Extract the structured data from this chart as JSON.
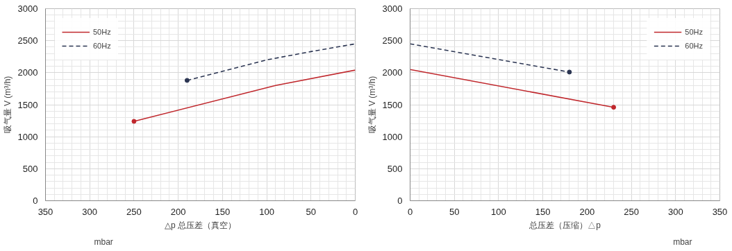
{
  "chart_data": [
    {
      "type": "line",
      "xlabel": "△p 总压差（真空）",
      "ylabel": "吸气量 V (m³/h)",
      "annotations": [
        "mbar"
      ],
      "xlim": [
        350,
        0
      ],
      "xticks": [
        350,
        300,
        250,
        200,
        150,
        100,
        50,
        0
      ],
      "ylim": [
        0,
        3000
      ],
      "yticks": [
        0,
        500,
        1000,
        1500,
        2000,
        2500,
        3000
      ],
      "grid": true,
      "legend": "top left",
      "series": [
        {
          "name": "50Hz",
          "color": "#c0282d",
          "line_style": "solid",
          "x": [
            250,
            90,
            0
          ],
          "values": [
            1240,
            1800,
            2040
          ]
        },
        {
          "name": "60Hz",
          "color": "#2b3552",
          "line_style": "dashed",
          "x": [
            190,
            100,
            50,
            0
          ],
          "values": [
            1880,
            2200,
            2330,
            2450
          ]
        },
        {
          "type": "scatter",
          "color": "#c0282d",
          "marker": "circle",
          "x": [
            250
          ],
          "values": [
            1240
          ]
        },
        {
          "type": "scatter",
          "color": "#2b3552",
          "marker": "circle",
          "x": [
            190
          ],
          "values": [
            1880
          ]
        }
      ]
    },
    {
      "type": "line",
      "xlabel": "总压差（压缩）△p",
      "ylabel": "吸气量 V (m³/h)",
      "annotations": [
        "mbar"
      ],
      "xlim": [
        0,
        350
      ],
      "xticks": [
        0,
        50,
        100,
        150,
        200,
        250,
        300,
        350
      ],
      "ylim": [
        0,
        3000
      ],
      "yticks": [
        0,
        500,
        1000,
        1500,
        2000,
        2500,
        3000
      ],
      "grid": true,
      "legend": "top right",
      "series": [
        {
          "name": "50Hz",
          "color": "#c0282d",
          "line_style": "solid",
          "x": [
            0,
            230
          ],
          "values": [
            2050,
            1460
          ]
        },
        {
          "name": "60Hz",
          "color": "#2b3552",
          "line_style": "dashed",
          "x": [
            0,
            180
          ],
          "values": [
            2450,
            2010
          ]
        },
        {
          "type": "scatter",
          "color": "#c0282d",
          "marker": "circle",
          "x": [
            230
          ],
          "values": [
            1460
          ]
        },
        {
          "type": "scatter",
          "color": "#2b3552",
          "marker": "circle",
          "x": [
            180
          ],
          "values": [
            2010
          ]
        }
      ]
    }
  ]
}
